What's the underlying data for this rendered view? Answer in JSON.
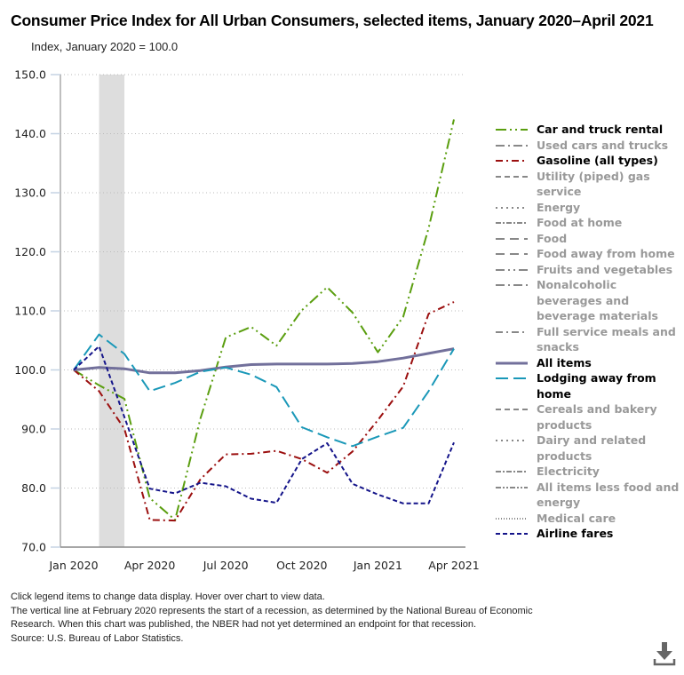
{
  "title": "Consumer Price Index for All Urban Consumers, selected items, January 2020–April 2021",
  "subtitle": "Index, January 2020 = 100.0",
  "notes": [
    "Click legend items to change data display. Hover over chart to view data.",
    "The vertical line at February 2020 represents the start of a recession, as determined by the National Bureau of Economic Research. When this chart was published, the NBER had not yet determined an endpoint for that recession.",
    "Source: U.S. Bureau of Labor Statistics."
  ],
  "download_icon": "download-icon",
  "chart_data": {
    "type": "line",
    "title": "Consumer Price Index for All Urban Consumers, selected items, January 2020–April 2021",
    "ylabel": "Index, January 2020 = 100.0",
    "xlabel": "",
    "ylim": [
      70,
      150
    ],
    "yticks": [
      "70.0",
      "80.0",
      "90.0",
      "100.0",
      "110.0",
      "120.0",
      "130.0",
      "140.0",
      "150.0"
    ],
    "ytick_values": [
      70,
      80,
      90,
      100,
      110,
      120,
      130,
      140,
      150
    ],
    "x": [
      "Jan 2020",
      "Feb 2020",
      "Mar 2020",
      "Apr 2020",
      "May 2020",
      "Jun 2020",
      "Jul 2020",
      "Aug 2020",
      "Sep 2020",
      "Oct 2020",
      "Nov 2020",
      "Dec 2020",
      "Jan 2021",
      "Feb 2021",
      "Mar 2021",
      "Apr 2021"
    ],
    "xticks": [
      "Jan 2020",
      "Apr 2020",
      "Jul 2020",
      "Oct 2020",
      "Jan 2021",
      "Apr 2021"
    ],
    "xtick_indices": [
      0,
      3,
      6,
      9,
      12,
      15
    ],
    "grid": "horizontal-dotted",
    "legend_position": "right",
    "recession_shading": {
      "start": "Feb 2020",
      "end_index": 2.0,
      "start_index": 1.0,
      "color": "#dddddd"
    },
    "series": [
      {
        "name": "Car and truck rental",
        "active": true,
        "color": "#5a9e0f",
        "dash": "12,4,2,4,2,4",
        "width": 2,
        "values": [
          100.0,
          97.4,
          95.1,
          78.3,
          74.6,
          91.8,
          105.5,
          107.3,
          104.1,
          110.1,
          114.0,
          109.7,
          103.0,
          109.0,
          124.0,
          142.4
        ]
      },
      {
        "name": "Used cars and trucks",
        "active": false,
        "color": "#777777",
        "dash": "10,4,2,4",
        "values": []
      },
      {
        "name": "Gasoline (all types)",
        "active": true,
        "color": "#9b0f0f",
        "dash": "8,4,2,4",
        "width": 2,
        "values": [
          100.0,
          96.4,
          90.0,
          74.6,
          74.5,
          81.5,
          85.7,
          85.8,
          86.3,
          84.9,
          82.6,
          86.2,
          91.5,
          97.2,
          109.5,
          111.5
        ]
      },
      {
        "name": "Utility (piped) gas service",
        "active": false,
        "color": "#777777",
        "dash": "6,4",
        "values": []
      },
      {
        "name": "Energy",
        "active": false,
        "color": "#777777",
        "dash": "2,4",
        "values": []
      },
      {
        "name": "Food at home",
        "active": false,
        "color": "#777777",
        "dash": "6,2,2,2",
        "values": []
      },
      {
        "name": "Food",
        "active": false,
        "color": "#777777",
        "dash": "10,6",
        "values": []
      },
      {
        "name": "Food away from home",
        "active": false,
        "color": "#777777",
        "dash": "10,6",
        "values": []
      },
      {
        "name": "Fruits and vegetables",
        "active": false,
        "color": "#777777",
        "dash": "10,4,2,4,2,4",
        "values": []
      },
      {
        "name": "Nonalcoholic beverages and beverage materials",
        "active": false,
        "color": "#777777",
        "dash": "10,4,2,4",
        "values": []
      },
      {
        "name": "Full service meals and snacks",
        "active": false,
        "color": "#777777",
        "dash": "8,4,2,4",
        "values": []
      },
      {
        "name": "All items",
        "active": true,
        "color": "#72709b",
        "dash": "",
        "width": 3,
        "values": [
          100.0,
          100.4,
          100.2,
          99.5,
          99.5,
          99.9,
          100.5,
          100.9,
          101.0,
          101.0,
          101.0,
          101.1,
          101.4,
          102.0,
          102.8,
          103.6
        ]
      },
      {
        "name": "Lodging away from home",
        "active": true,
        "color": "#1a98b8",
        "dash": "14,6",
        "width": 2,
        "values": [
          100.0,
          106.0,
          102.7,
          96.4,
          97.8,
          99.7,
          100.4,
          99.2,
          97.1,
          90.3,
          88.6,
          87.1,
          88.7,
          90.2,
          96.4,
          103.6
        ]
      },
      {
        "name": "Cereals and bakery products",
        "active": false,
        "color": "#777777",
        "dash": "6,4",
        "values": []
      },
      {
        "name": "Dairy and related products",
        "active": false,
        "color": "#777777",
        "dash": "2,4",
        "values": []
      },
      {
        "name": "Electricity",
        "active": false,
        "color": "#777777",
        "dash": "6,2,2,2",
        "values": []
      },
      {
        "name": "All items less food and energy",
        "active": false,
        "color": "#777777",
        "dash": "6,2,2,2,2,2",
        "values": []
      },
      {
        "name": "Medical care",
        "active": false,
        "color": "#777777",
        "dash": "1,2",
        "values": []
      },
      {
        "name": "Airline fares",
        "active": true,
        "color": "#15158a",
        "dash": "5,3",
        "width": 2,
        "values": [
          100.0,
          104.0,
          92.0,
          79.9,
          79.1,
          80.9,
          80.3,
          78.2,
          77.5,
          84.9,
          87.6,
          80.7,
          78.9,
          77.4,
          77.4,
          87.7
        ]
      }
    ]
  }
}
